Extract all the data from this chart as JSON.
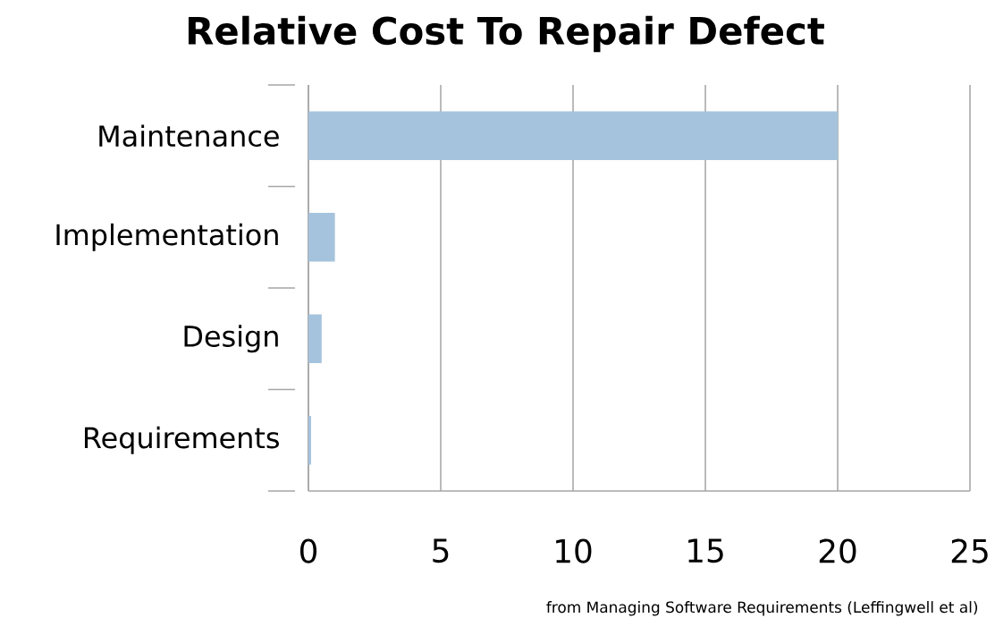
{
  "chart_data": {
    "type": "bar",
    "orientation": "horizontal",
    "title": "Relative Cost To Repair Defect",
    "categories": [
      "Maintenance",
      "Implementation",
      "Design",
      "Requirements"
    ],
    "values": [
      20,
      1,
      0.5,
      0.1
    ],
    "color": "#a5c3dc",
    "xlim": [
      0,
      25
    ],
    "xticks": [
      0,
      5,
      10,
      15,
      20,
      25
    ],
    "grid": "x",
    "annotations": [
      "from Managing Software Requirements (Leffingwell et al)"
    ]
  }
}
